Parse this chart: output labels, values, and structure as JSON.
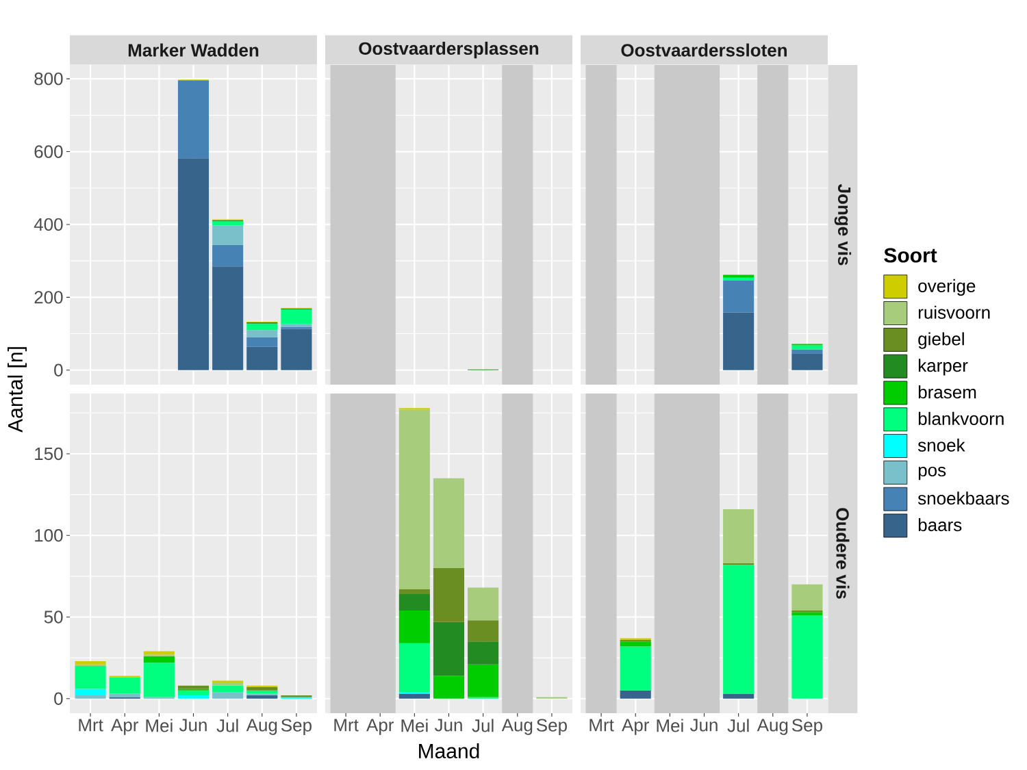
{
  "chart_data": [
    {
      "type": "bar",
      "stacked": true,
      "title": "Marker Wadden",
      "ylabel": "Aantal [n]",
      "categories": [
        "Mrt",
        "Apr",
        "Mei",
        "Jun",
        "Jul",
        "Aug",
        "Sep"
      ],
      "ylim": [
        -39.9,
        837.9
      ],
      "yticks": [
        0,
        200,
        400,
        600,
        800
      ],
      "grid": true,
      "tick_labels": "y",
      "series": [
        {
          "color": "#36648b",
          "values": [
            null,
            null,
            null,
            582,
            285,
            64,
            113
          ]
        },
        {
          "color": "#4682b4",
          "values": [
            null,
            null,
            null,
            214,
            59,
            26,
            6
          ]
        },
        {
          "color": "#7ac0cb",
          "values": [
            null,
            null,
            null,
            null,
            53,
            20,
            7
          ]
        },
        {
          "color": "#00ff7f",
          "values": [
            null,
            null,
            null,
            null,
            12,
            18,
            41
          ]
        },
        {
          "color": "#228b22",
          "values": [
            null,
            null,
            null,
            null,
            2,
            3,
            2
          ]
        },
        {
          "color": "#cdcd00",
          "values": [
            null,
            null,
            null,
            2,
            3,
            2,
            2
          ]
        }
      ]
    },
    {
      "type": "bar",
      "stacked": true,
      "title": "Oostvaardersplassen",
      "categories": [
        "Mrt",
        "Apr",
        "Mei",
        "Jun",
        "Jul",
        "Aug",
        "Sep"
      ],
      "ylim": [
        -39.9,
        837.9
      ],
      "yticks": [
        0,
        200,
        400,
        600,
        800
      ],
      "grid": true,
      "tick_labels": false,
      "bands": [
        {
          "axis": "x",
          "from": "Mrt",
          "to": "Apr",
          "color": "#c9c9c9"
        },
        {
          "axis": "x",
          "from": "Aug",
          "to": "Aug",
          "color": "#c9c9c9"
        }
      ],
      "series": [
        {
          "color": "#228b22",
          "values": [
            null,
            null,
            null,
            null,
            2,
            null,
            null
          ]
        }
      ]
    },
    {
      "type": "bar",
      "stacked": true,
      "title": "Oostvaarderssloten",
      "y2label": "Jonge vis",
      "legend": "right",
      "legend_title": "Soort",
      "categories": [
        "Mrt",
        "Apr",
        "Mei",
        "Jun",
        "Jul",
        "Aug",
        "Sep"
      ],
      "ylim": [
        -39.9,
        837.9
      ],
      "yticks": [
        0,
        200,
        400,
        600,
        800
      ],
      "grid": true,
      "tick_labels": false,
      "bands": [
        {
          "axis": "x",
          "from": "Mrt",
          "to": "Mrt",
          "color": "#c9c9c9"
        },
        {
          "axis": "x",
          "from": "Mei",
          "to": "Jun",
          "color": "#c9c9c9"
        },
        {
          "axis": "x",
          "from": "Aug",
          "to": "Aug",
          "color": "#c9c9c9"
        }
      ],
      "series": [
        {
          "name": "baars",
          "color": "#36648b",
          "values": [
            null,
            null,
            null,
            null,
            158,
            null,
            46
          ]
        },
        {
          "name": "snoekbaars",
          "color": "#4682b4",
          "values": [
            null,
            null,
            null,
            null,
            88,
            null,
            11
          ]
        },
        {
          "name": "pos",
          "color": "#7ac0cb",
          "values": [
            null,
            null,
            null,
            null,
            null,
            null,
            null
          ]
        },
        {
          "name": "snoek",
          "color": "#00ffff",
          "values": [
            null,
            null,
            null,
            null,
            null,
            null,
            null
          ]
        },
        {
          "name": "blankvoorn",
          "color": "#00ff7f",
          "values": [
            null,
            null,
            null,
            null,
            8,
            null,
            11
          ]
        },
        {
          "name": "brasem",
          "color": "#00cd00",
          "values": [
            null,
            null,
            null,
            null,
            8,
            null,
            4
          ]
        },
        {
          "name": "karper",
          "color": "#228b22",
          "values": [
            null,
            null,
            null,
            null,
            null,
            null,
            null
          ]
        },
        {
          "name": "giebel",
          "color": "#6b8e23",
          "values": [
            null,
            null,
            null,
            null,
            null,
            null,
            null
          ]
        },
        {
          "name": "ruisvoorn",
          "color": "#a6cc7c",
          "values": [
            null,
            null,
            null,
            null,
            null,
            null,
            null
          ]
        },
        {
          "name": "overige",
          "color": "#cdcd00",
          "values": [
            null,
            null,
            null,
            null,
            null,
            null,
            null
          ]
        }
      ]
    },
    {
      "type": "bar",
      "stacked": true,
      "categories": [
        "Mrt",
        "Apr",
        "Mei",
        "Jun",
        "Jul",
        "Aug",
        "Sep"
      ],
      "ylim": [
        -8.9,
        186.9
      ],
      "yticks": [
        0,
        50,
        100,
        150
      ],
      "grid": true,
      "series": [
        {
          "color": "#36648b",
          "values": [
            null,
            1,
            null,
            null,
            null,
            2,
            null
          ]
        },
        {
          "color": "#7ac0cb",
          "values": [
            2,
            2,
            1,
            null,
            4,
            1,
            null
          ]
        },
        {
          "color": "#00ffff",
          "values": [
            4,
            null,
            null,
            2,
            null,
            null,
            1
          ]
        },
        {
          "color": "#00ff7f",
          "values": [
            14,
            10,
            21,
            3,
            4,
            2,
            null
          ]
        },
        {
          "color": "#00cd00",
          "values": [
            null,
            null,
            4,
            1,
            null,
            null,
            null
          ]
        },
        {
          "color": "#6b8e23",
          "values": [
            null,
            null,
            null,
            2,
            null,
            2,
            1
          ]
        },
        {
          "color": "#a6cc7c",
          "values": [
            1,
            null,
            1,
            null,
            2,
            null,
            null
          ]
        },
        {
          "color": "#cdcd00",
          "values": [
            2,
            1,
            2,
            null,
            1,
            1,
            null
          ]
        }
      ]
    },
    {
      "type": "bar",
      "stacked": true,
      "xlabel": "Maand",
      "categories": [
        "Mrt",
        "Apr",
        "Mei",
        "Jun",
        "Jul",
        "Aug",
        "Sep"
      ],
      "ylim": [
        -8.9,
        186.9
      ],
      "yticks": [
        0,
        50,
        100,
        150
      ],
      "grid": true,
      "tick_labels": "x",
      "bands": [
        {
          "axis": "x",
          "from": "Mrt",
          "to": "Apr",
          "color": "#c9c9c9"
        },
        {
          "axis": "x",
          "from": "Aug",
          "to": "Aug",
          "color": "#c9c9c9"
        }
      ],
      "series": [
        {
          "color": "#36648b",
          "values": [
            null,
            null,
            3,
            null,
            null,
            null,
            null
          ]
        },
        {
          "color": "#00ffff",
          "values": [
            null,
            null,
            1,
            null,
            null,
            null,
            null
          ]
        },
        {
          "color": "#00ff7f",
          "values": [
            null,
            null,
            30,
            null,
            1,
            null,
            null
          ]
        },
        {
          "color": "#00cd00",
          "values": [
            null,
            null,
            20,
            14,
            20,
            null,
            null
          ]
        },
        {
          "color": "#228b22",
          "values": [
            null,
            null,
            10,
            33,
            14,
            null,
            null
          ]
        },
        {
          "color": "#6b8e23",
          "values": [
            null,
            null,
            3,
            33,
            13,
            null,
            null
          ]
        },
        {
          "color": "#a6cc7c",
          "values": [
            null,
            null,
            110,
            55,
            20,
            null,
            1
          ]
        },
        {
          "color": "#cdcd00",
          "values": [
            null,
            null,
            1,
            null,
            null,
            null,
            null
          ]
        }
      ]
    },
    {
      "type": "bar",
      "stacked": true,
      "y2label": "Oudere vis",
      "categories": [
        "Mrt",
        "Apr",
        "Mei",
        "Jun",
        "Jul",
        "Aug",
        "Sep"
      ],
      "ylim": [
        -8.9,
        186.9
      ],
      "yticks": [
        0,
        50,
        100,
        150
      ],
      "grid": true,
      "tick_labels": "x",
      "bands": [
        {
          "axis": "x",
          "from": "Mrt",
          "to": "Mrt",
          "color": "#c9c9c9"
        },
        {
          "axis": "x",
          "from": "Mei",
          "to": "Jun",
          "color": "#c9c9c9"
        },
        {
          "axis": "x",
          "from": "Aug",
          "to": "Aug",
          "color": "#c9c9c9"
        }
      ],
      "series": [
        {
          "color": "#36648b",
          "values": [
            null,
            5,
            null,
            null,
            3,
            null,
            null
          ]
        },
        {
          "color": "#00ff7f",
          "values": [
            null,
            27,
            null,
            null,
            79,
            null,
            51
          ]
        },
        {
          "color": "#00cd00",
          "values": [
            null,
            3,
            null,
            null,
            null,
            null,
            2
          ]
        },
        {
          "color": "#6b8e23",
          "values": [
            null,
            1,
            null,
            null,
            1,
            null,
            1
          ]
        },
        {
          "color": "#a6cc7c",
          "values": [
            null,
            null,
            null,
            null,
            33,
            null,
            16
          ]
        },
        {
          "color": "#cdcd00",
          "values": [
            null,
            1,
            null,
            null,
            null,
            null,
            null
          ]
        }
      ]
    }
  ]
}
